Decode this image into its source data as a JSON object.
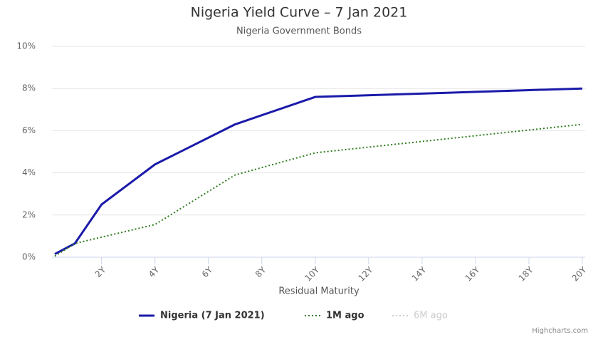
{
  "chart_data": {
    "type": "line",
    "title": "Nigeria Yield Curve – 7 Jan 2021",
    "subtitle": "Nigeria Government Bonds",
    "x_label": "Residual Maturity",
    "credit": "Highcharts.com",
    "x": [
      0.25,
      1,
      2,
      4,
      7,
      10,
      20
    ],
    "series": [
      {
        "name": "Nigeria (7 Jan 2021)",
        "color": "#1a1aaa",
        "dash": "solid",
        "visible": true,
        "values": [
          0.15,
          0.65,
          2.5,
          4.4,
          6.3,
          7.6,
          8.0
        ]
      },
      {
        "name": "1M ago",
        "color": "#2e7d1e",
        "dash": "dotted",
        "visible": true,
        "values": [
          0.05,
          0.65,
          0.95,
          1.55,
          3.9,
          4.95,
          6.3
        ]
      },
      {
        "name": "6M ago",
        "color": "#cccccc",
        "dash": "dotted",
        "visible": false,
        "values": [
          null,
          null,
          null,
          null,
          null,
          null,
          null
        ]
      }
    ],
    "xlim": [
      0.25,
      20
    ],
    "xticks": [
      {
        "value": 2,
        "label": "2Y"
      },
      {
        "value": 4,
        "label": "4Y"
      },
      {
        "value": 6,
        "label": "6Y"
      },
      {
        "value": 8,
        "label": "8Y"
      },
      {
        "value": 10,
        "label": "10Y"
      },
      {
        "value": 12,
        "label": "12Y"
      },
      {
        "value": 14,
        "label": "14Y"
      },
      {
        "value": 16,
        "label": "16Y"
      },
      {
        "value": 18,
        "label": "18Y"
      },
      {
        "value": 20,
        "label": "20Y"
      }
    ],
    "ylim": [
      0,
      10
    ],
    "yticks": [
      {
        "value": 0,
        "label": "0%"
      },
      {
        "value": 2,
        "label": "2%"
      },
      {
        "value": 4,
        "label": "4%"
      },
      {
        "value": 6,
        "label": "6%"
      },
      {
        "value": 8,
        "label": "8%"
      },
      {
        "value": 10,
        "label": "10%"
      }
    ],
    "grid": true
  }
}
